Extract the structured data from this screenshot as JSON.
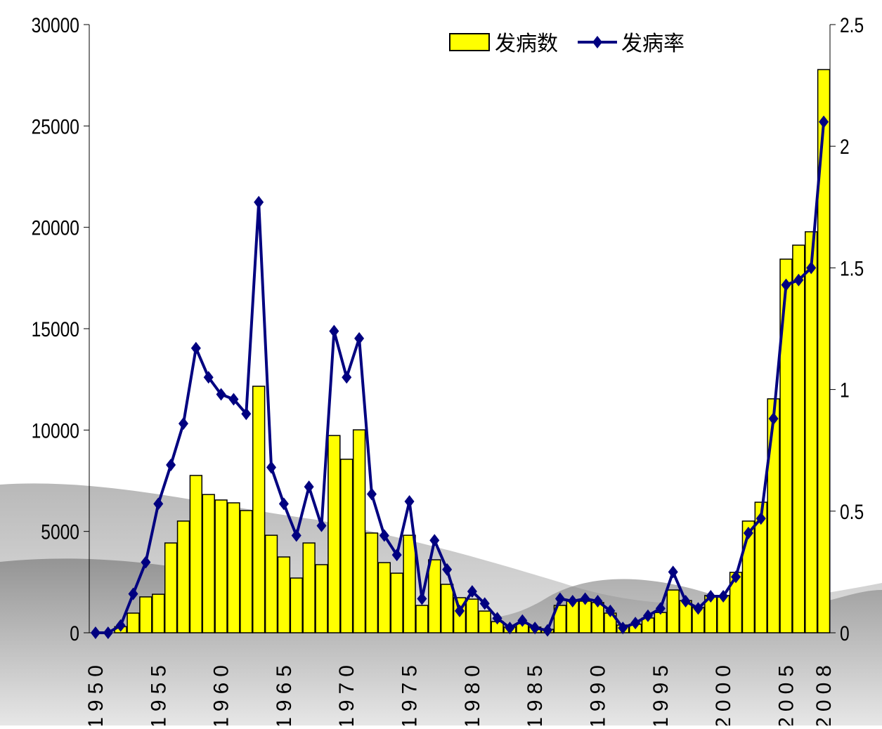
{
  "chart_data": {
    "type": "bar-line",
    "categories": [
      "1950",
      null,
      null,
      null,
      null,
      "1955",
      null,
      null,
      null,
      null,
      "1960",
      null,
      null,
      null,
      null,
      "1965",
      null,
      null,
      null,
      null,
      "1970",
      null,
      null,
      null,
      null,
      "1975",
      null,
      null,
      null,
      null,
      "1980",
      null,
      null,
      null,
      null,
      "1985",
      null,
      null,
      null,
      null,
      "1990",
      null,
      null,
      null,
      null,
      "1995",
      null,
      null,
      null,
      null,
      "2000",
      null,
      null,
      null,
      null,
      "2005",
      null,
      null,
      "2008"
    ],
    "series": [
      {
        "name": "发病数",
        "type": "bar",
        "color": "#ffff00",
        "values": [
          0,
          0,
          300,
          970,
          1770,
          1900,
          4430,
          5510,
          7760,
          6820,
          6550,
          6410,
          6030,
          12160,
          4810,
          3740,
          2700,
          4430,
          3360,
          9730,
          8560,
          10010,
          4920,
          3460,
          2940,
          4810,
          1350,
          3600,
          2390,
          1730,
          1660,
          1070,
          550,
          280,
          450,
          280,
          170,
          1350,
          1560,
          1560,
          1490,
          970,
          380,
          420,
          730,
          1000,
          2110,
          1590,
          1250,
          1840,
          1840,
          2980,
          5510,
          6440,
          11540,
          18430,
          19120,
          19780,
          27780
        ]
      },
      {
        "name": "发病率",
        "type": "line",
        "axis": "y2",
        "color": "#000080",
        "values": [
          0,
          0,
          0.03,
          0.16,
          0.29,
          0.53,
          0.69,
          0.86,
          1.17,
          1.05,
          0.98,
          0.96,
          0.9,
          1.77,
          0.68,
          0.53,
          0.4,
          0.6,
          0.44,
          1.24,
          1.05,
          1.21,
          0.57,
          0.4,
          0.32,
          0.54,
          0.14,
          0.38,
          0.26,
          0.09,
          0.17,
          0.12,
          0.06,
          0.02,
          0.05,
          0.02,
          0.01,
          0.14,
          0.13,
          0.14,
          0.13,
          0.09,
          0.02,
          0.04,
          0.07,
          0.1,
          0.25,
          0.13,
          0.1,
          0.15,
          0.15,
          0.23,
          0.41,
          0.47,
          0.88,
          1.43,
          1.45,
          1.5,
          2.1
        ]
      }
    ],
    "ylim": [
      0,
      30000
    ],
    "yticks": [
      0,
      5000,
      10000,
      15000,
      20000,
      25000,
      30000
    ],
    "y2lim": [
      0,
      2.5
    ],
    "y2ticks": [
      0,
      0.5,
      1,
      1.5,
      2,
      2.5
    ],
    "legend": "top-right",
    "grid": false
  }
}
